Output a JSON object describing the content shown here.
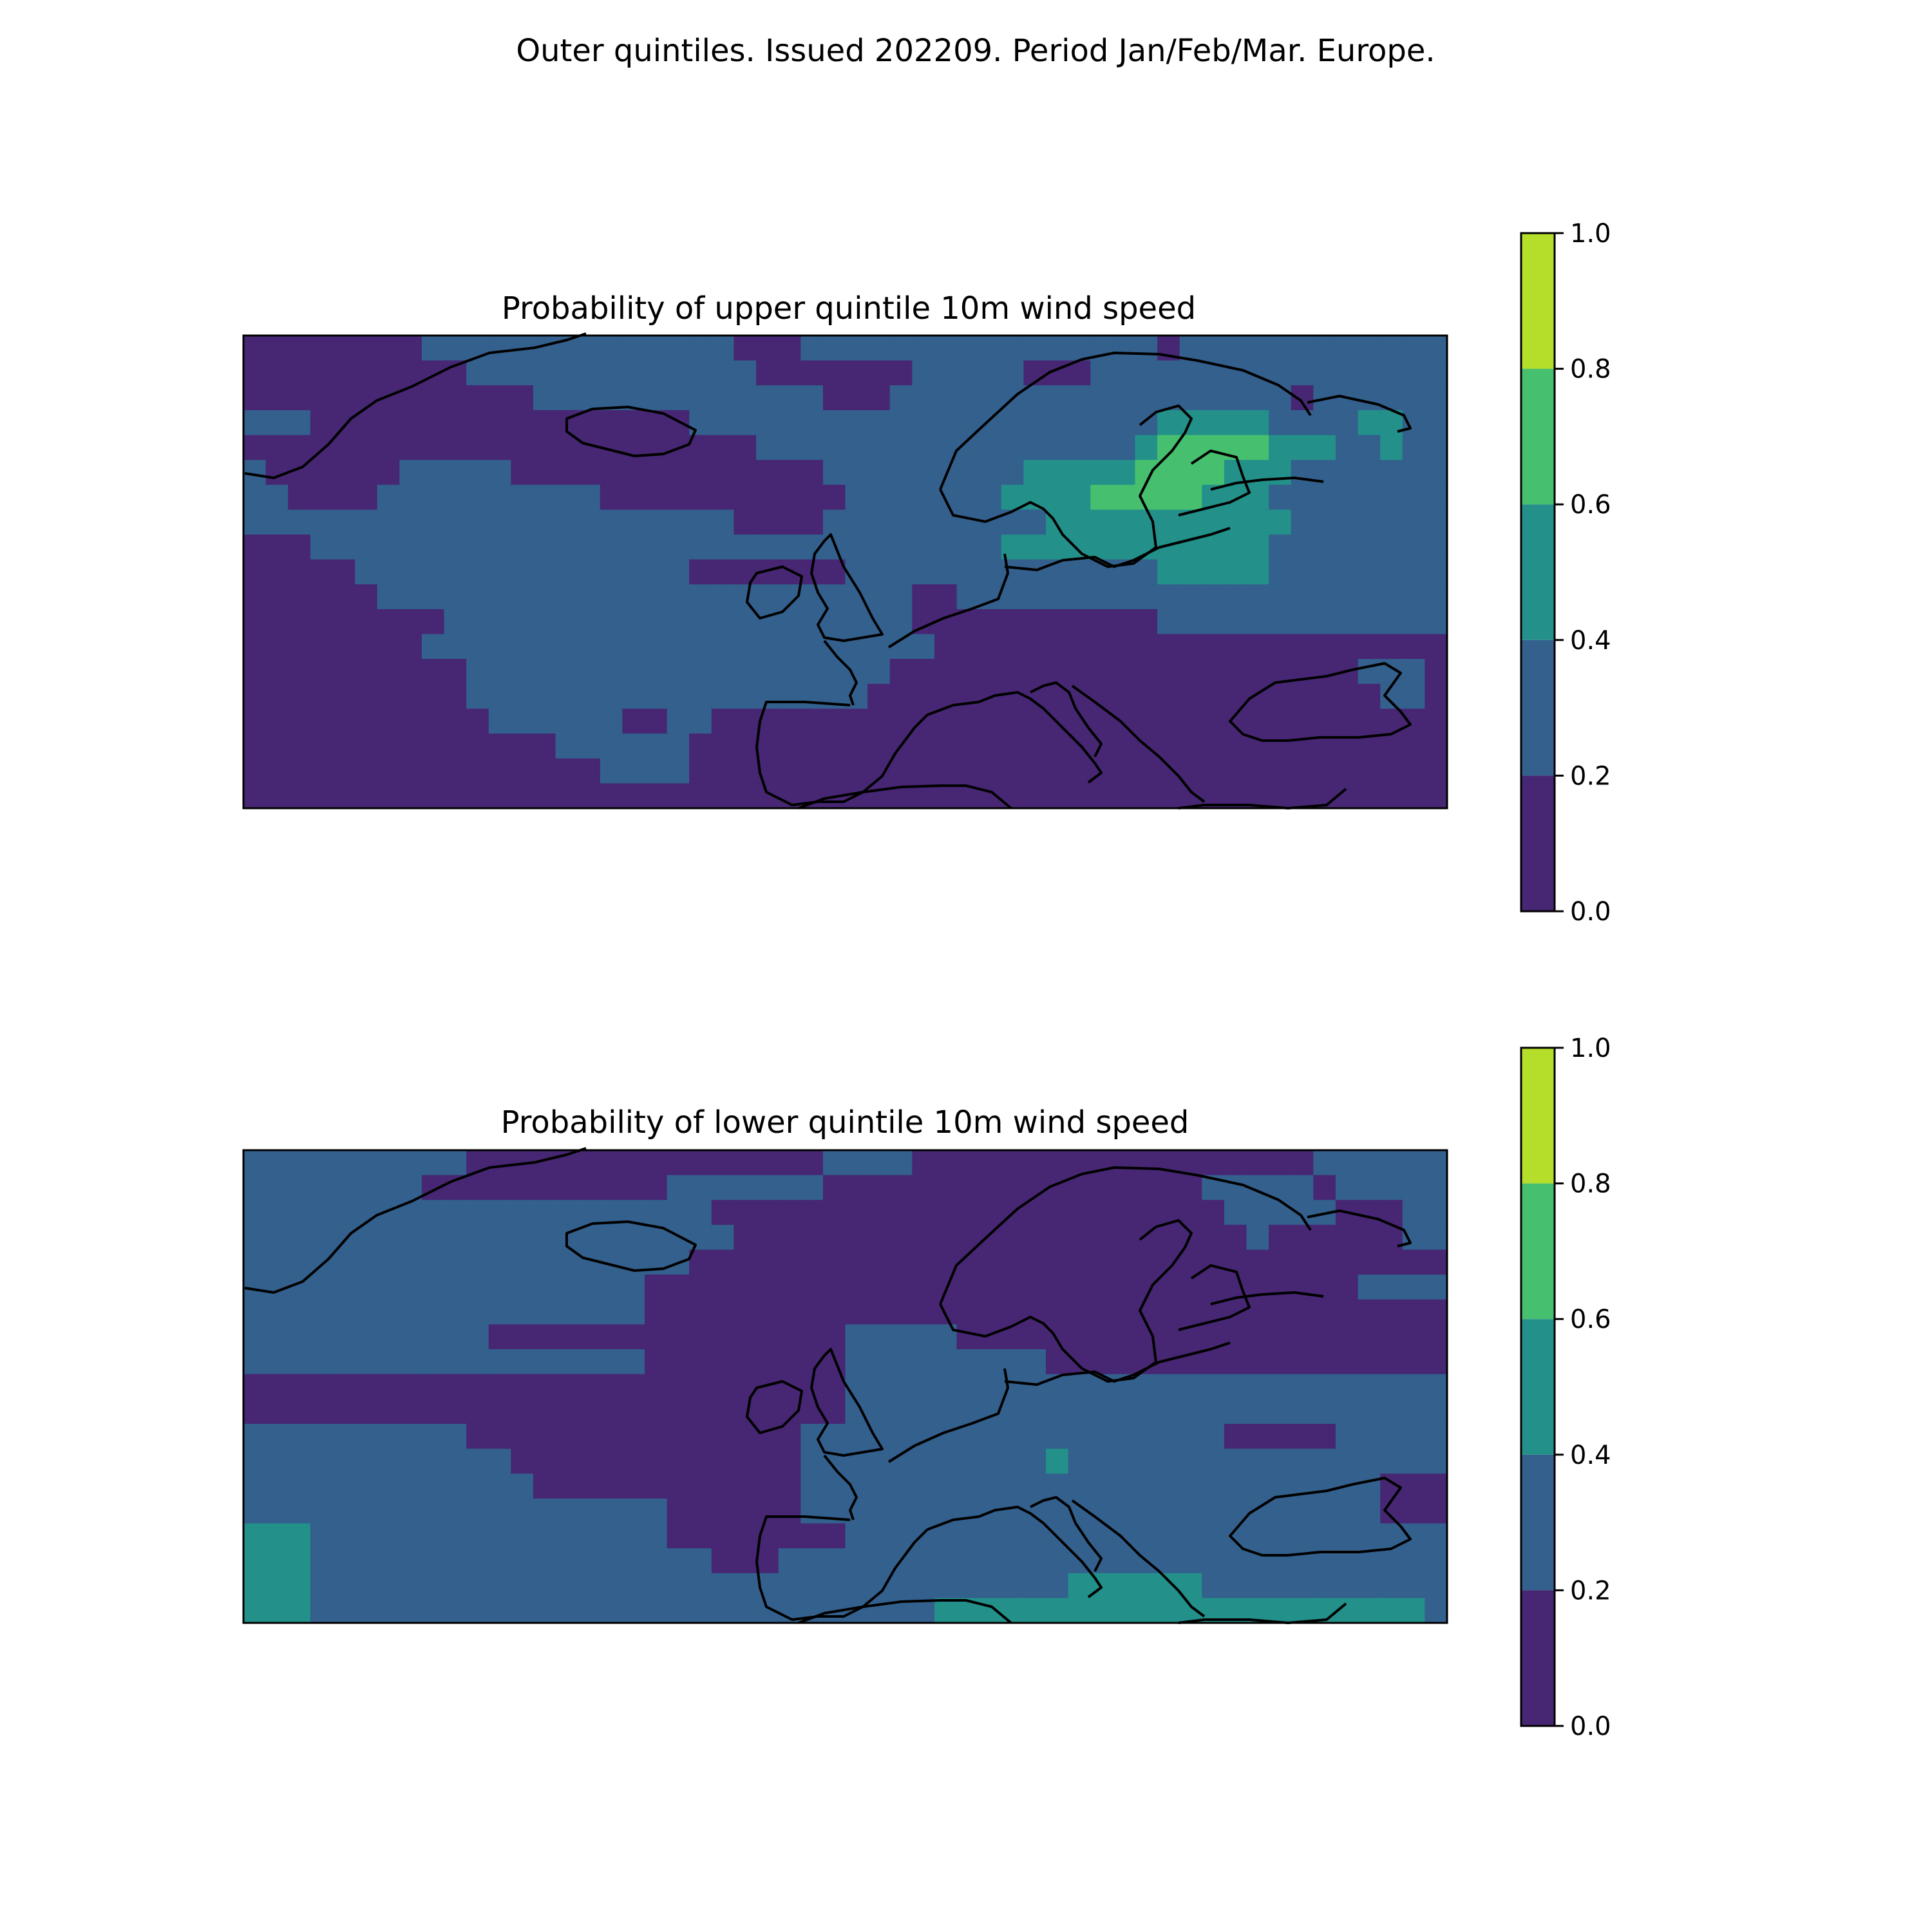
{
  "figure": {
    "suptitle": "Outer quintiles. Issued 202209. Period Jan/Feb/Mar. Europe."
  },
  "colors": {
    "levels": [
      "#440154",
      "#3b528b",
      "#21918c",
      "#5ec962",
      "#bddf26"
    ],
    "band_fills": [
      "#472673",
      "#33608d",
      "#23908a",
      "#46bf6e",
      "#b5de2b"
    ],
    "coast": "#000000"
  },
  "chart_data": [
    {
      "type": "heatmap",
      "title": "Probability of upper quintile 10m wind speed",
      "colorbar": {
        "ticks": [
          0.0,
          0.2,
          0.4,
          0.6,
          0.8,
          1.0
        ],
        "tick_labels": [
          "0.0",
          "0.2",
          "0.4",
          "0.6",
          "0.8",
          "1.0"
        ],
        "ylim": [
          0,
          1
        ]
      },
      "band_index_grid": [
        "000000001111111111111100011111111111111110111111111111",
        "000000000011111111111110000000111110001111111111111111",
        "000000000000011111111111110001111111111111111110111111",
        "111000000000000000001111111111111111111112222211112211",
        "000000000000000000000001111111111111111123333322211211",
        "100000011111000000000000001111111112222233332221111111",
        "110000111111111100000000000111111122223333322211111111",
        "111111111111111111111100001111111111222222222221111111",
        "000111111111111111111111111111111122222222222211111111",
        "000001111111111111110000000111111111111112222211111111",
        "000000111111111111111111111111001111111111111111111111",
        "000000000111111111111111111111000000000001111111111111",
        "000000001111111111111111111111100000000000000000000000",
        "000000000011111111111111111110000000000000000000001110",
        "000000000011111111111111111100000000000000000000000110",
        "000000000001111110011000000000000000000000000000000000",
        "000000000000001111110000000000000000000000000000000000",
        "000000000000000011110000000000000000000000000000000000",
        "000000000000000000000000000000000000000000000000000000"
      ]
    },
    {
      "type": "heatmap",
      "title": "Probability of lower quintile 10m wind speed",
      "colorbar": {
        "ticks": [
          0.0,
          0.2,
          0.4,
          0.6,
          0.8,
          1.0
        ],
        "tick_labels": [
          "0.0",
          "0.2",
          "0.4",
          "0.6",
          "0.8",
          "1.0"
        ],
        "ylim": [
          0,
          1
        ]
      },
      "band_index_grid": [
        "111111111100000000000000001111000000000000000000111111",
        "111111110000000000011111110000000000000000011111011111",
        "111111111111111111111000000000000000000000001111100011",
        "111111111111111111111100000000000000000000000100000011",
        "111111111111111111110000000000000000000000000000000000",
        "111111111111111111000000000000000000000000000000001111",
        "111111111111111111000000000000000000000000000000000000",
        "111111111110000000000000000111110000000000000000000000",
        "111111111111111111000000000111111111000000000000000000",
        "000000000000000000000000000111111111111111111111111111",
        "000000000000000000000000000111111111111111111111111111",
        "111111111100000000000000011111111111111111110000011111",
        "111111111111000000000000011111111111211111111111111111",
        "111111111111100000000000011111111111111111111111111000",
        "111111111111111111100000011111111111111111111111111000",
        "222111111111111111100000000111111111111111111111111111",
        "222111111111111111111000111111111111111111111111111111",
        "222111111111111111111111111111111111122222211111111111",
        "222111111111111111111111111111122222222222222222222221"
      ]
    }
  ]
}
